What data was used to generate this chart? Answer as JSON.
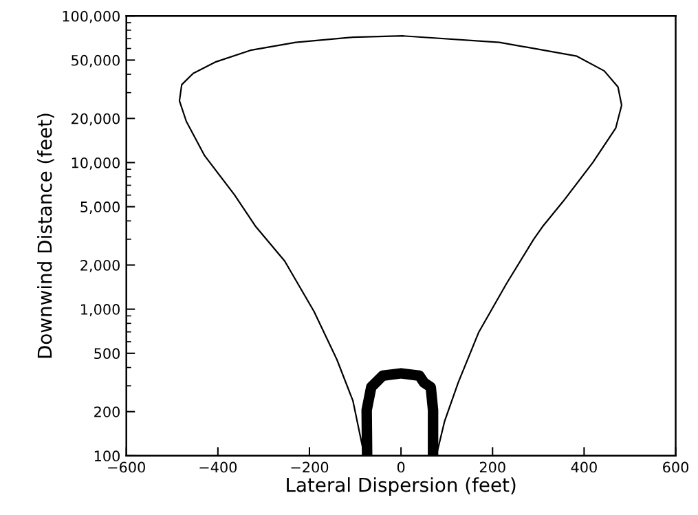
{
  "chart_data": {
    "type": "line",
    "xlabel": "Lateral Dispersion (feet)",
    "ylabel": "Downwind Distance (feet)",
    "log": "y",
    "grid": false,
    "marker": "none",
    "line_style": "solid",
    "xlim": [
      -600,
      600
    ],
    "ylim": [
      100,
      100000
    ],
    "xticks": [
      {
        "value": -600,
        "label": "−600"
      },
      {
        "value": -400,
        "label": "−400"
      },
      {
        "value": -200,
        "label": "−200"
      },
      0,
      200,
      400,
      600
    ],
    "yticks": [
      100,
      200,
      500,
      {
        "value": 1000,
        "label": "1,000"
      },
      {
        "value": 2000,
        "label": "2,000"
      },
      {
        "value": 5000,
        "label": "5,000"
      },
      {
        "value": 10000,
        "label": "10,000"
      },
      {
        "value": 20000,
        "label": "20,000"
      },
      {
        "value": 50000,
        "label": "50,000"
      },
      {
        "value": 100000,
        "label": "100,000"
      }
    ],
    "series": [
      {
        "color": "#000000",
        "x": [
          -80,
          -105,
          -140,
          -190,
          -254,
          -294,
          -317,
          -364,
          -429,
          -469,
          -484,
          -479,
          -454,
          -404,
          -329,
          -230,
          -105,
          5,
          215,
          384,
          444,
          474,
          482,
          469,
          419,
          354,
          309,
          290,
          230,
          170,
          125,
          95,
          77
        ],
        "values": [
          100,
          237,
          453,
          964,
          2128,
          3000,
          3650,
          6040,
          11140,
          19100,
          26400,
          34000,
          40600,
          48700,
          58300,
          66100,
          71600,
          73100,
          66100,
          53200,
          42200,
          32750,
          24600,
          17150,
          10000,
          5425,
          3650,
          3000,
          1486,
          698,
          316,
          171,
          100
        ]
      },
      {
        "color": "#000000",
        "x": [
          -74,
          -75,
          -65,
          -40,
          0,
          40,
          50,
          65,
          70,
          70
        ],
        "values": [
          100,
          205,
          294,
          352,
          365,
          352,
          316,
          294,
          205,
          100
        ]
      }
    ]
  }
}
